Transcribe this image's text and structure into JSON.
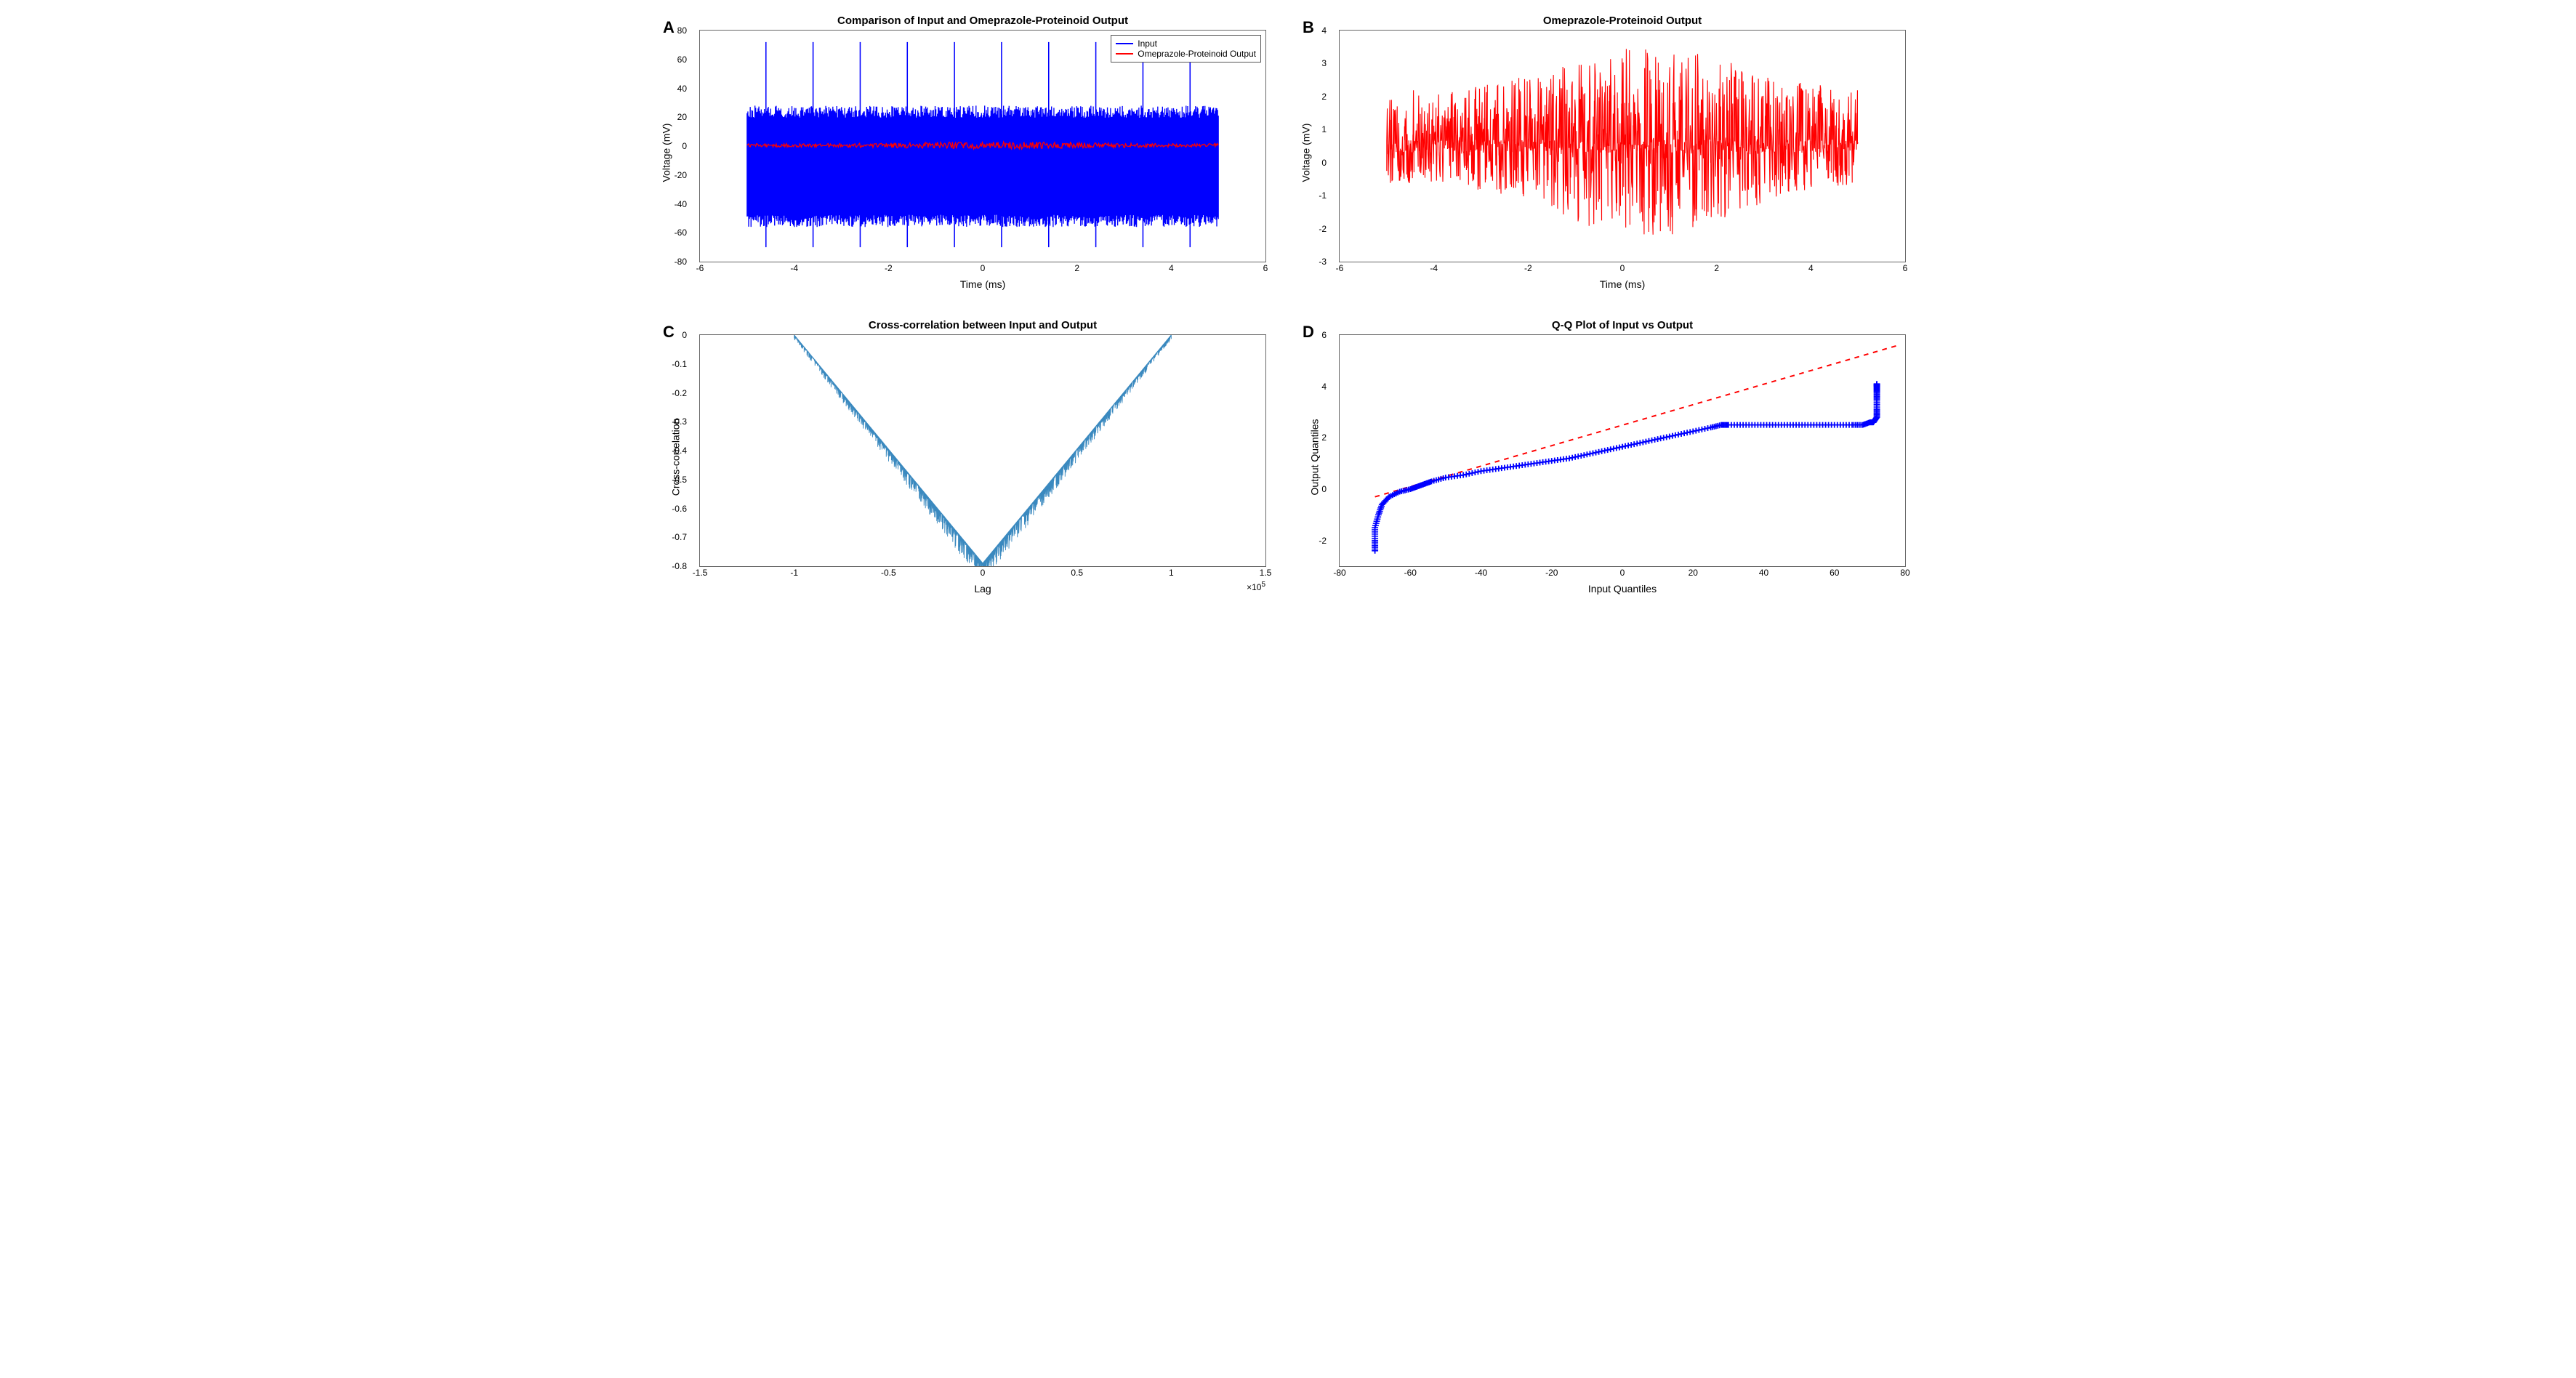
{
  "panels": {
    "A": {
      "label": "A",
      "title": "Comparison of Input and Omeprazole-Proteinoid Output",
      "xlabel": "Time (ms)",
      "ylabel": "Voltage (mV)",
      "xlim": [
        -6,
        6
      ],
      "ylim": [
        -80,
        80
      ],
      "xtick_step": 2,
      "ytick_step": 20,
      "background_color": "#ffffff",
      "border_color": "#555555",
      "colors": {
        "input": "#0000ff",
        "output": "#ff0000"
      },
      "linewidth": {
        "input": 1.2,
        "output": 1.2
      },
      "legend": {
        "position": "top-right",
        "entries": [
          {
            "label": "Input",
            "color": "#0000ff"
          },
          {
            "label": "Omeprazole-Proteinoid Output",
            "color": "#ff0000"
          }
        ]
      },
      "data": {
        "x_range": [
          -5,
          5
        ],
        "input_envelope_top": 28,
        "input_envelope_bottom": -56,
        "input_spikes_top": [
          72,
          72,
          72,
          72,
          72,
          72,
          72,
          72,
          72,
          72
        ],
        "input_spikes_bottom": [
          -70,
          -70,
          -70,
          -70,
          -70,
          -70,
          -70,
          -70,
          -70,
          -70
        ],
        "input_spike_positions": [
          -4.6,
          -3.6,
          -2.6,
          -1.6,
          -0.6,
          0.4,
          1.4,
          2.4,
          3.4,
          4.4
        ],
        "output_envelope_top": 3,
        "output_envelope_bottom": -2,
        "output_random_seed": 11
      },
      "type": "dense-line"
    },
    "B": {
      "label": "B",
      "title": "Omeprazole-Proteinoid Output",
      "xlabel": "Time (ms)",
      "ylabel": "Voltage (mV)",
      "xlim": [
        -6,
        6
      ],
      "ylim": [
        -3,
        4
      ],
      "xtick_step": 2,
      "ytick_step": 1,
      "background_color": "#ffffff",
      "border_color": "#555555",
      "color": "#ff0000",
      "linewidth": 1.0,
      "data": {
        "x_range": [
          -5,
          5
        ],
        "base_envelope_top": 2.2,
        "base_envelope_bottom": -0.6,
        "center_bulge_top": 3.6,
        "center_bulge_bottom": -2.3,
        "center_x": 0.5,
        "center_width": 2.5,
        "random_seed": 7
      },
      "type": "dense-line"
    },
    "C": {
      "label": "C",
      "title": "Cross-correlation between Input and Output",
      "xlabel": "Lag",
      "ylabel": "Cross-correlation",
      "xlim": [
        -1.5,
        1.5
      ],
      "ylim": [
        -0.8,
        0
      ],
      "xtick_step": 0.5,
      "ytick_step": 0.1,
      "x_exponent": 5,
      "background_color": "#ffffff",
      "border_color": "#555555",
      "color": "#3a89bf",
      "linewidth": 0.8,
      "data": {
        "peak_x": 0,
        "peak_y": -0.79,
        "end_y": 0,
        "end_x_left": -1.0,
        "end_x_right": 1.0,
        "noise_amp": 0.06,
        "random_seed": 3
      },
      "type": "v-shape"
    },
    "D": {
      "label": "D",
      "title": "Q-Q Plot of Input vs Output",
      "xlabel": "Input Quantiles",
      "ylabel": "Output Quantiles",
      "xlim": [
        -80,
        80
      ],
      "ylim": [
        -3,
        6
      ],
      "xtick_step": 20,
      "ytick_step": 2,
      "background_color": "#ffffff",
      "border_color": "#555555",
      "colors": {
        "points": "#0000ff",
        "reference": "#ff0000"
      },
      "marker_size": 4,
      "marker": "plus",
      "ref_dash": "6,6",
      "ref_linewidth": 2,
      "data": {
        "ref_line": {
          "x1": -70,
          "y1": -0.3,
          "x2": 78,
          "y2": 5.6
        },
        "curve": [
          [
            -70,
            -2.4
          ],
          [
            -70,
            -2.0
          ],
          [
            -70,
            -1.5
          ],
          [
            -69,
            -1.0
          ],
          [
            -68,
            -0.6
          ],
          [
            -66,
            -0.3
          ],
          [
            -63,
            -0.1
          ],
          [
            -60,
            0.0
          ],
          [
            -58,
            0.1
          ],
          [
            -56,
            0.2
          ],
          [
            -54,
            0.3
          ],
          [
            -50,
            0.45
          ],
          [
            -45,
            0.55
          ],
          [
            -40,
            0.7
          ],
          [
            -35,
            0.8
          ],
          [
            -30,
            0.9
          ],
          [
            -25,
            1.0
          ],
          [
            -20,
            1.1
          ],
          [
            -15,
            1.2
          ],
          [
            -10,
            1.35
          ],
          [
            -5,
            1.5
          ],
          [
            0,
            1.65
          ],
          [
            5,
            1.8
          ],
          [
            10,
            1.95
          ],
          [
            15,
            2.1
          ],
          [
            20,
            2.25
          ],
          [
            25,
            2.4
          ],
          [
            28,
            2.5
          ],
          [
            30,
            2.5
          ],
          [
            35,
            2.5
          ],
          [
            40,
            2.5
          ],
          [
            45,
            2.5
          ],
          [
            50,
            2.5
          ],
          [
            55,
            2.5
          ],
          [
            60,
            2.5
          ],
          [
            65,
            2.5
          ],
          [
            68,
            2.5
          ],
          [
            70,
            2.6
          ],
          [
            71,
            2.6
          ],
          [
            72,
            2.8
          ],
          [
            72,
            3.1
          ],
          [
            72,
            3.5
          ],
          [
            72,
            3.8
          ],
          [
            72,
            4.0
          ],
          [
            72,
            4.1
          ]
        ]
      },
      "type": "qq-scatter"
    }
  },
  "label_fontsize": 14,
  "title_fontsize": 15,
  "tick_fontsize": 12,
  "panel_label_fontsize": 22
}
